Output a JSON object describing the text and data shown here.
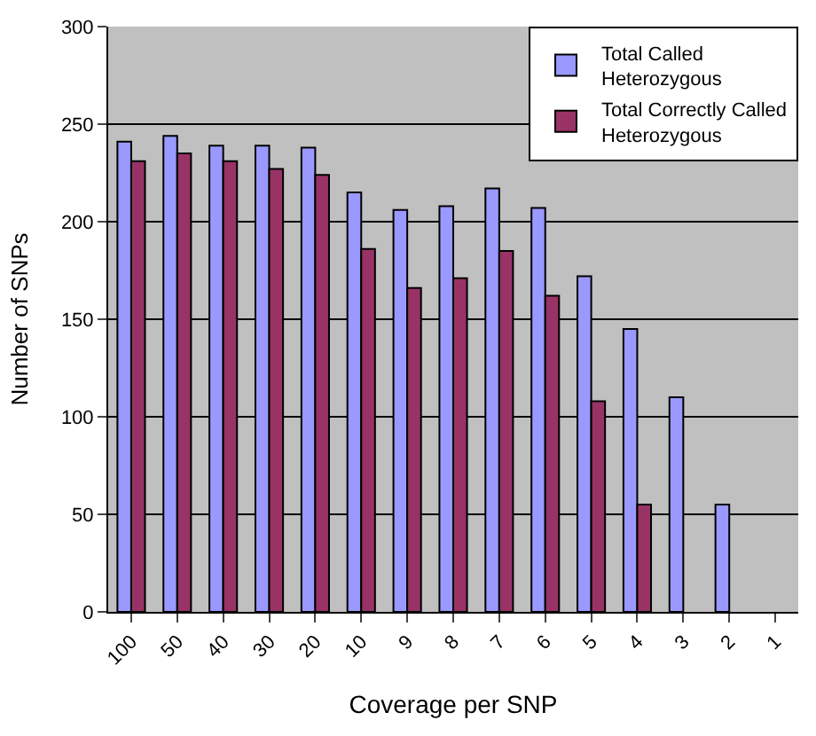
{
  "chart_data": {
    "type": "bar",
    "xlabel": "Coverage per SNP",
    "ylabel": "Number of SNPs",
    "categories": [
      "100",
      "50",
      "40",
      "30",
      "20",
      "10",
      "9",
      "8",
      "7",
      "6",
      "5",
      "4",
      "3",
      "2",
      "1"
    ],
    "series": [
      {
        "name": "Total Called Heterozygous",
        "color": "#9999ff",
        "values": [
          241,
          244,
          239,
          239,
          238,
          215,
          206,
          208,
          217,
          207,
          172,
          145,
          110,
          55,
          null
        ]
      },
      {
        "name": "Total Correctly Called Heterozygous",
        "color": "#993366",
        "values": [
          231,
          235,
          231,
          227,
          224,
          186,
          166,
          171,
          185,
          162,
          108,
          55,
          null,
          null,
          null
        ]
      }
    ],
    "ylim": [
      0,
      300
    ],
    "yticks": [
      0,
      50,
      100,
      150,
      200,
      250,
      300
    ],
    "grid": "y",
    "legend": "top right"
  }
}
